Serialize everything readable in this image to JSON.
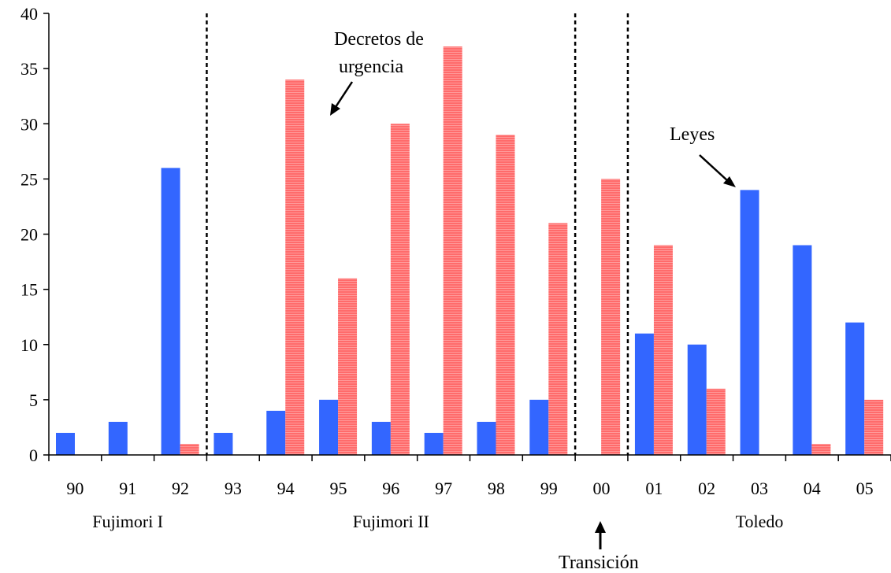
{
  "chart_data": {
    "type": "bar",
    "categories": [
      "90",
      "91",
      "92",
      "93",
      "94",
      "95",
      "96",
      "97",
      "98",
      "99",
      "00",
      "01",
      "02",
      "03",
      "04",
      "05"
    ],
    "series": [
      {
        "values": [
          2,
          3,
          26,
          2,
          4,
          5,
          3,
          2,
          3,
          5,
          0,
          11,
          10,
          24,
          19,
          12
        ],
        "color": "#3366ff"
      },
      {
        "values": [
          0,
          0,
          1,
          0,
          34,
          16,
          30,
          37,
          29,
          21,
          25,
          19,
          6,
          0,
          1,
          5
        ],
        "color": "#ff7777"
      }
    ],
    "ylim": [
      0,
      40
    ],
    "yticks": [
      0,
      5,
      10,
      15,
      20,
      25,
      30,
      35,
      40
    ],
    "periods": [
      {
        "label": "Fujimori I",
        "from": "90",
        "to": "92"
      },
      {
        "label": "Fujimori II",
        "from": "93",
        "to": "99"
      },
      {
        "label": "Toledo",
        "from": "01",
        "to": "05"
      }
    ],
    "period_dividers_after": [
      "92",
      "99",
      "00"
    ],
    "annotations": {
      "decrees_line1": "Decretos de",
      "decrees_line2": "urgencia",
      "laws": "Leyes",
      "transition": "Transición"
    },
    "grid": false
  }
}
